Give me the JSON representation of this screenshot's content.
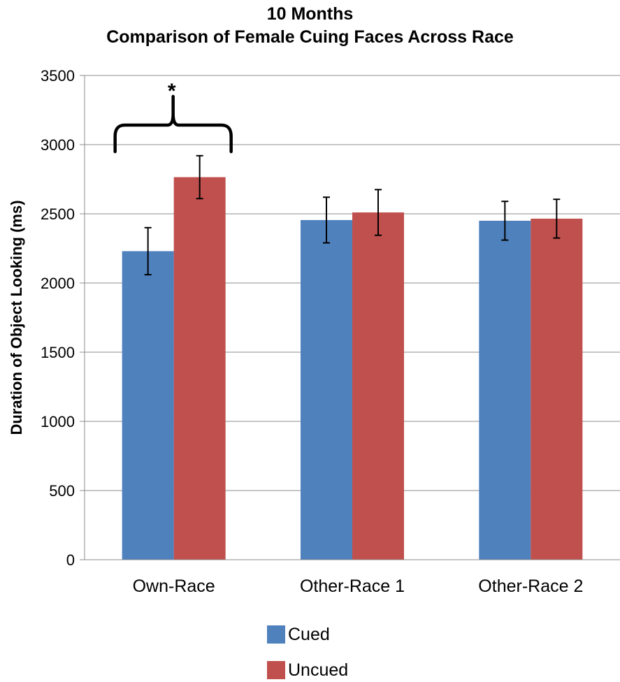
{
  "chart_data": {
    "type": "bar",
    "title": "10 Months",
    "subtitle": "Comparison of Female Cuing Faces Across Race",
    "xlabel": "",
    "ylabel": "Duration of Object Looking (ms)",
    "ylim": [
      0,
      3500
    ],
    "yticks": [
      0,
      500,
      1000,
      1500,
      2000,
      2500,
      3000,
      3500
    ],
    "grid": "horizontal",
    "legend_position": "bottom",
    "categories": [
      "Own-Race",
      "Other-Race 1",
      "Other-Race 2"
    ],
    "series": [
      {
        "name": "Cued",
        "color": "#4f81bd",
        "values": [
          2230,
          2455,
          2450
        ],
        "error_low": [
          2060,
          2290,
          2310
        ],
        "error_high": [
          2400,
          2620,
          2590
        ]
      },
      {
        "name": "Uncued",
        "color": "#c0504d",
        "values": [
          2765,
          2510,
          2465
        ],
        "error_low": [
          2610,
          2345,
          2325
        ],
        "error_high": [
          2920,
          2675,
          2605
        ]
      }
    ],
    "annotations": [
      {
        "text": "*",
        "category": "Own-Race",
        "type": "significance-bracket"
      }
    ]
  }
}
